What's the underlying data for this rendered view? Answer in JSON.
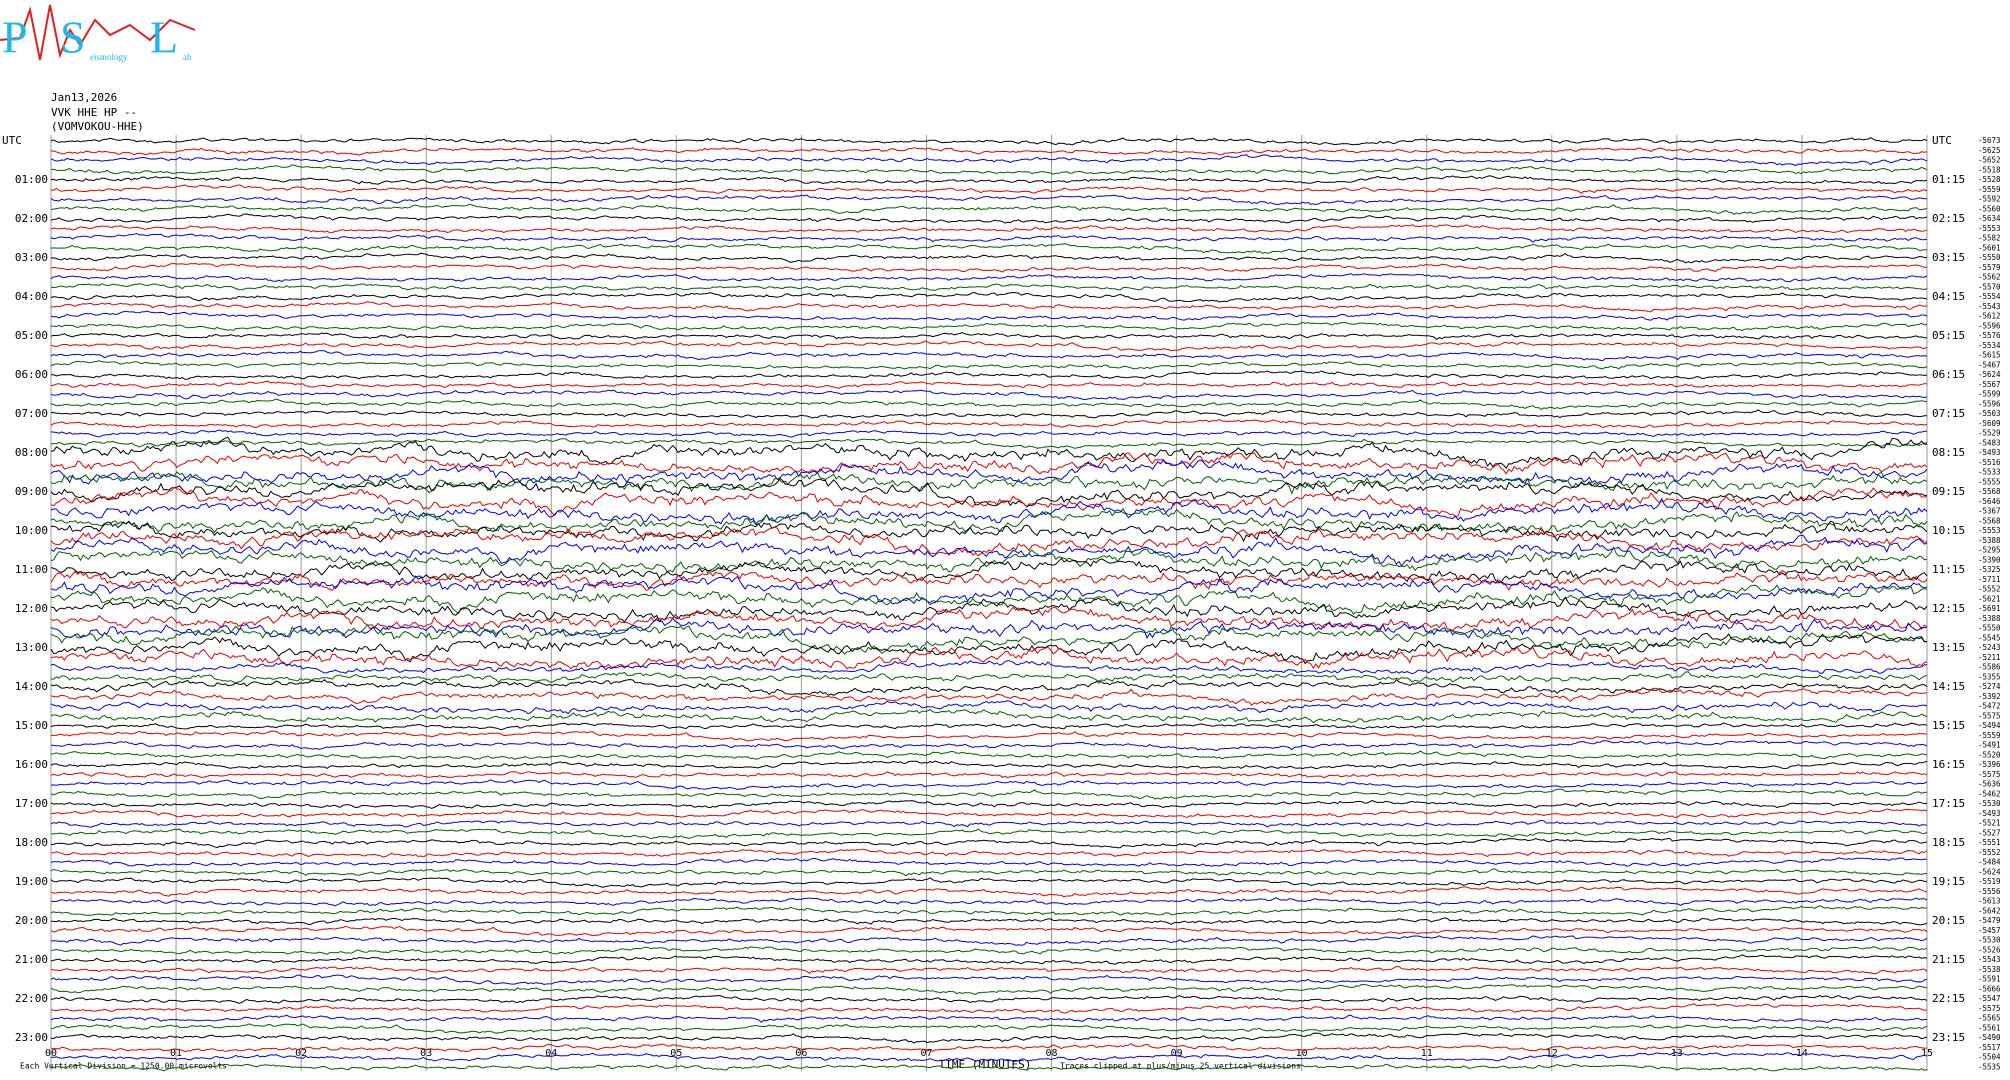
{
  "logo": {
    "letters": [
      "P",
      "S",
      "L"
    ],
    "small": [
      "eismology",
      "ab"
    ]
  },
  "header": {
    "date": "Jan13,2026",
    "station": "VVK HHE HP --",
    "channel": "(VOMVOKOU-HHE)"
  },
  "left_labels": [
    "UTC",
    "01:00",
    "02:00",
    "03:00",
    "04:00",
    "05:00",
    "06:00",
    "07:00",
    "08:00",
    "09:00",
    "10:00",
    "11:00",
    "12:00",
    "13:00",
    "14:00",
    "15:00",
    "16:00",
    "17:00",
    "18:00",
    "19:00",
    "20:00",
    "21:00",
    "22:00",
    "23:00"
  ],
  "right_labels": [
    "UTC",
    "01:15",
    "02:15",
    "03:15",
    "04:15",
    "05:15",
    "06:15",
    "07:15",
    "08:15",
    "09:15",
    "10:15",
    "11:15",
    "12:15",
    "13:15",
    "14:15",
    "15:15",
    "16:15",
    "17:15",
    "18:15",
    "19:15",
    "20:15",
    "21:15",
    "22:15",
    "23:15"
  ],
  "trace_labels": [
    "-5673",
    "-5625",
    "-5652",
    "-5518",
    "-5528",
    "-5559",
    "-5592",
    "-5560",
    "-5634",
    "-5553",
    "-5582",
    "-5601",
    "-5550",
    "-5579",
    "-5562",
    "-5570",
    "-5554",
    "-5543",
    "-5612",
    "-5596",
    "-5576",
    "-5534",
    "-5615",
    "-5467",
    "-5624",
    "-5567",
    "-5599",
    "-5596",
    "-5503",
    "-5609",
    "-5529",
    "-5483",
    "-5493",
    "-5516",
    "-5533",
    "-5555",
    "-5568",
    "-5646",
    "-5367",
    "-5568",
    "-5553",
    "-5388",
    "-5295",
    "-5390",
    "-5325",
    "-5711",
    "-5552",
    "-5621",
    "-5691",
    "-5388",
    "-5550",
    "-5545",
    "-5243",
    "-5211",
    "-5586",
    "-5355",
    "-5274",
    "-5392",
    "-5472",
    "-5575",
    "-5494",
    "-5559",
    "-5491",
    "-5520",
    "-5396",
    "-5575",
    "-5636",
    "-5462",
    "-5530",
    "-5493",
    "-5521",
    "-5527",
    "-5551",
    "-5552",
    "-5484",
    "-5624",
    "-5519",
    "-5556",
    "-5613",
    "-5642",
    "-5479",
    "-5457",
    "-5530",
    "-5526",
    "-5543",
    "-5538",
    "-5591",
    "-5666",
    "-5547",
    "-5575",
    "-5565",
    "-5561",
    "-5490",
    "-5517",
    "-5504",
    "-5535"
  ],
  "x_labels": [
    "00",
    "01",
    "02",
    "03",
    "04",
    "05",
    "06",
    "07",
    "08",
    "09",
    "10",
    "11",
    "12",
    "13",
    "14",
    "15"
  ],
  "x_title": "TIME (MINUTES)",
  "footer_left": "Each Vertical Division = 1250.00 microvolts",
  "footer_right": "Traces clipped at plus/minus 25 vertical divisions"
}
